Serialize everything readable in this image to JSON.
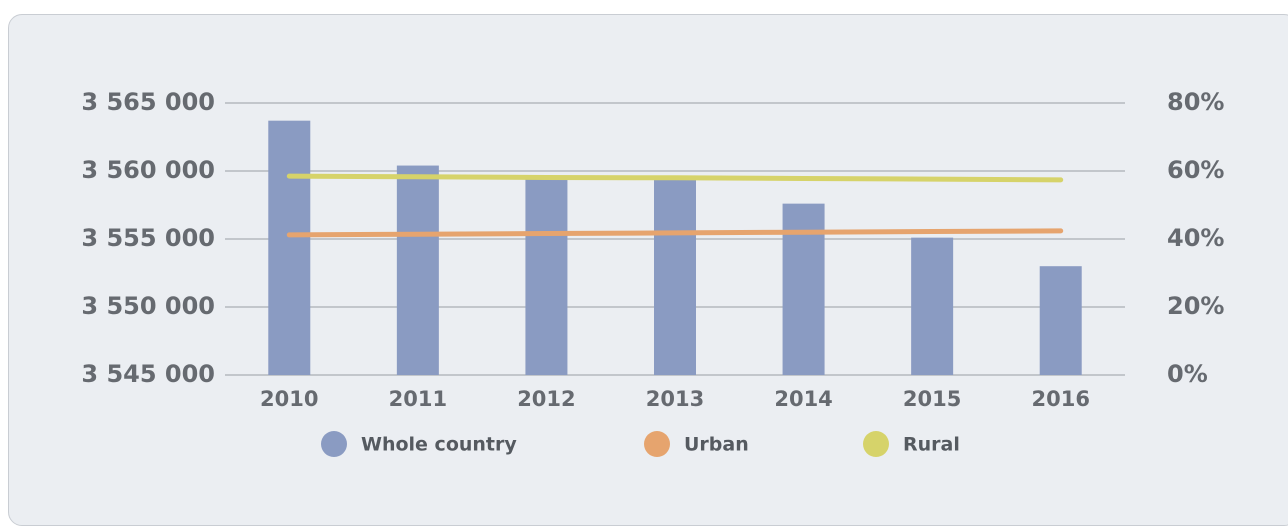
{
  "chart_data": {
    "type": "bar-line",
    "categories": [
      "2010",
      "2011",
      "2012",
      "2013",
      "2014",
      "2015",
      "2016"
    ],
    "series": [
      {
        "name": "Whole country",
        "type": "bar",
        "color": "#8a9bc2",
        "values": [
          3563700,
          3560400,
          3559600,
          3559600,
          3557600,
          3555100,
          3553000
        ]
      },
      {
        "name": "Urban",
        "type": "line",
        "axis": "y2",
        "color": "#e6a46e",
        "values": [
          41.2,
          41.4,
          41.6,
          41.8,
          42.0,
          42.2,
          42.4
        ]
      },
      {
        "name": "Rural",
        "type": "line",
        "axis": "y2",
        "color": "#d6d36a",
        "values": [
          58.5,
          58.3,
          58.1,
          58.0,
          57.8,
          57.6,
          57.4
        ]
      }
    ],
    "ylim": [
      3545000,
      3565000
    ],
    "yticks": [
      {
        "value": 3545000,
        "label": "3 545 000"
      },
      {
        "value": 3550000,
        "label": "3 550 000"
      },
      {
        "value": 3555000,
        "label": "3 555 000"
      },
      {
        "value": 3560000,
        "label": "3 560 000"
      },
      {
        "value": 3565000,
        "label": "3 565 000"
      }
    ],
    "y2lim": [
      0,
      80
    ],
    "y2ticks": [
      {
        "value": 0,
        "label": "0%"
      },
      {
        "value": 20,
        "label": "20%"
      },
      {
        "value": 40,
        "label": "40%"
      },
      {
        "value": 60,
        "label": "60%"
      },
      {
        "value": 80,
        "label": "80%"
      }
    ],
    "grid": true
  }
}
